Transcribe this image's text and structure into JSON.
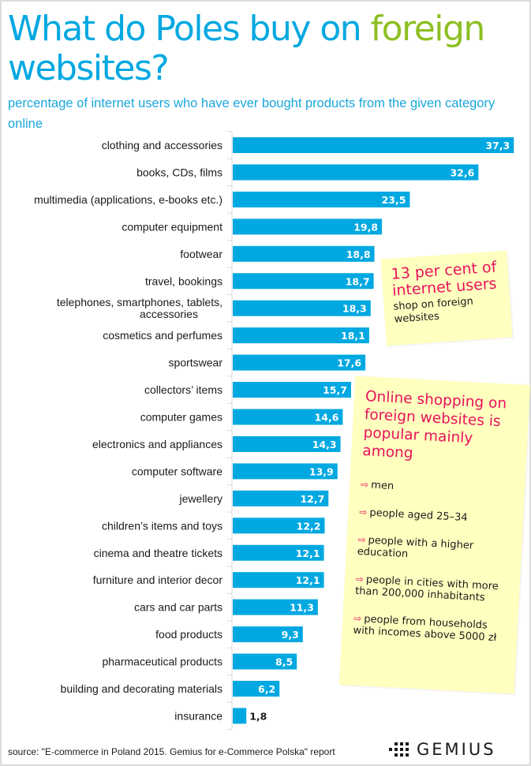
{
  "title": {
    "part1": "What do Poles buy on ",
    "accent": "foreign",
    "part2": "websites?"
  },
  "subtitle": "percentage of internet users who have ever bought products from the given category online",
  "colors": {
    "bar": "#00a8e1",
    "title": "#00a8e1",
    "accent": "#8dbf22",
    "note_bg": "#ffffc0",
    "note_text": "#e8125c"
  },
  "chart_data": {
    "type": "bar",
    "orientation": "horizontal",
    "title": "What do Poles buy on foreign websites?",
    "subtitle": "percentage of internet users who have ever bought products from the given category online",
    "xlabel": "",
    "ylabel": "",
    "xlim": [
      0,
      37.3
    ],
    "grid": false,
    "categories": [
      "clothing and accessories",
      "books, CDs, films",
      "multimedia (applications, e-books etc.)",
      "computer equipment",
      "footwear",
      "travel, bookings",
      "telephones, smartphones, tablets, accessories",
      "cosmetics and perfumes",
      "sportswear",
      "collectors' items",
      "computer games",
      "electronics and appliances",
      "computer software",
      "jewellery",
      "children's items and toys",
      "cinema and theatre tickets",
      "furniture and interior decor",
      "cars and car parts",
      "food products",
      "pharmaceutical products",
      "building and decorating materials",
      "insurance"
    ],
    "category_lines": [
      [
        "clothing and accessories"
      ],
      [
        "books, CDs, films"
      ],
      [
        "multimedia (applications, e-books etc.)"
      ],
      [
        "computer equipment"
      ],
      [
        "footwear"
      ],
      [
        "travel, bookings"
      ],
      [
        "telephones, smartphones, tablets,",
        "accessories"
      ],
      [
        "cosmetics and perfumes"
      ],
      [
        "sportswear"
      ],
      [
        "collectors’ items"
      ],
      [
        "computer games"
      ],
      [
        "electronics and appliances"
      ],
      [
        "computer software"
      ],
      [
        "jewellery"
      ],
      [
        "children’s items and toys"
      ],
      [
        "cinema and theatre tickets"
      ],
      [
        "furniture and interior decor"
      ],
      [
        "cars and car parts"
      ],
      [
        "food products"
      ],
      [
        "pharmaceutical products"
      ],
      [
        "building and decorating materials"
      ],
      [
        "insurance"
      ]
    ],
    "values": [
      37.3,
      32.6,
      23.5,
      19.8,
      18.8,
      18.7,
      18.3,
      18.1,
      17.6,
      15.7,
      14.6,
      14.3,
      13.9,
      12.7,
      12.2,
      12.1,
      12.1,
      11.3,
      9.3,
      8.5,
      6.2,
      1.8
    ],
    "value_labels": [
      "37,3",
      "32,6",
      "23,5",
      "19,8",
      "18,8",
      "18,7",
      "18,3",
      "18,1",
      "17,6",
      "15,7",
      "14,6",
      "14,3",
      "13,9",
      "12,7",
      "12,2",
      "12,1",
      "12,1",
      "11,3",
      "9,3",
      "8,5",
      "6,2",
      "1,8"
    ]
  },
  "note1": {
    "headline_line1": "13 per cent of",
    "headline_line2": "internet users",
    "body_line1": "shop on foreign",
    "body_line2": "websites"
  },
  "note2": {
    "headline": "Online shopping on foreign websites is popular mainly among",
    "arrow_icon": "arrow-right-outline-icon",
    "items": [
      "men",
      "people aged 25–34",
      "people with a higher education",
      "people in cities with more than 200,000 inhabitants",
      "people from households with incomes above 5000 zł"
    ]
  },
  "source": "source: \"E-commerce in Poland 2015. Gemius for e-Commerce Polska\" report",
  "logo": {
    "text": "GEMIUS",
    "icon": "gemius-dots-icon"
  }
}
